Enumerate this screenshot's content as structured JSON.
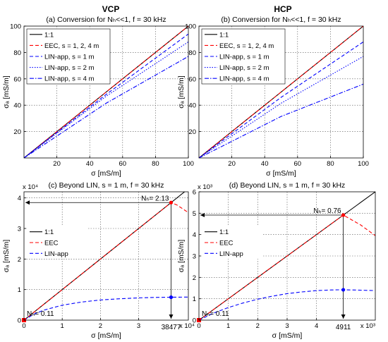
{
  "column_headers": {
    "left": "VCP",
    "right": "HCP"
  },
  "chart_data": [
    {
      "id": "a",
      "type": "line",
      "title": "(a) Conversion for Nₕ<<1, f = 30 kHz",
      "xlabel": "σ [mS/m]",
      "ylabel": "σₐ [mS/m]",
      "xlim": [
        0,
        100
      ],
      "ylim": [
        0,
        100
      ],
      "xticks": [
        20,
        40,
        60,
        80,
        100
      ],
      "yticks": [
        20,
        40,
        60,
        80,
        100
      ],
      "tick_labels_x": [
        "20",
        "40",
        "60",
        "80",
        "100"
      ],
      "tick_labels_y": [
        "20",
        "40",
        "60",
        "80",
        "100"
      ],
      "grid": true,
      "legend_position": "top-left",
      "series": [
        {
          "name": "1:1",
          "color": "#000000",
          "dash": "solid",
          "x": [
            0,
            100
          ],
          "y": [
            0,
            100
          ]
        },
        {
          "name": "EEC, s = 1, 2, 4 m",
          "color": "#ff0000",
          "dash": "dashed",
          "x": [
            0,
            100
          ],
          "y": [
            0,
            100
          ]
        },
        {
          "name": "LIN-app, s = 1 m",
          "color": "#0000ff",
          "dash": "dashed",
          "x": [
            0,
            50,
            100
          ],
          "y": [
            0,
            48.2,
            94
          ]
        },
        {
          "name": "LIN-app, s = 2 m",
          "color": "#0000ff",
          "dash": "dotted",
          "x": [
            0,
            50,
            100
          ],
          "y": [
            0,
            46.8,
            88
          ]
        },
        {
          "name": "LIN-app, s = 4 m",
          "color": "#0000ff",
          "dash": "dashdot",
          "x": [
            0,
            50,
            100
          ],
          "y": [
            0,
            41.5,
            77
          ]
        }
      ]
    },
    {
      "id": "b",
      "type": "line",
      "title": "(b) Conversion for Nₕ<<1, f = 30 kHz",
      "xlabel": "σ [mS/m]",
      "ylabel": "σₐ [mS/m]",
      "xlim": [
        0,
        100
      ],
      "ylim": [
        0,
        100
      ],
      "xticks": [
        20,
        40,
        60,
        80,
        100
      ],
      "yticks": [
        20,
        40,
        60,
        80,
        100
      ],
      "tick_labels_x": [
        "20",
        "40",
        "60",
        "80",
        "100"
      ],
      "tick_labels_y": [
        "20",
        "40",
        "60",
        "80",
        "100"
      ],
      "grid": true,
      "legend_position": "top-left",
      "series": [
        {
          "name": "1:1",
          "color": "#000000",
          "dash": "solid",
          "x": [
            0,
            100
          ],
          "y": [
            0,
            100
          ]
        },
        {
          "name": "EEC, s = 1, 2, 4 m",
          "color": "#ff0000",
          "dash": "dashed",
          "x": [
            0,
            100
          ],
          "y": [
            0,
            100
          ]
        },
        {
          "name": "LIN-app, s = 1 m",
          "color": "#0000ff",
          "dash": "dashed",
          "x": [
            0,
            50,
            100
          ],
          "y": [
            0,
            46,
            88
          ]
        },
        {
          "name": "LIN-app, s = 2 m",
          "color": "#0000ff",
          "dash": "dotted",
          "x": [
            0,
            50,
            100
          ],
          "y": [
            0,
            41.5,
            77
          ]
        },
        {
          "name": "LIN-app, s = 4 m",
          "color": "#0000ff",
          "dash": "dashdot",
          "x": [
            0,
            50,
            100
          ],
          "y": [
            0,
            31.5,
            56
          ]
        }
      ]
    },
    {
      "id": "c",
      "type": "line",
      "title": "(c) Beyond LIN, s = 1 m, f = 30 kHz",
      "xlabel": "σ [mS/m]",
      "ylabel": "σₐ [mS/m]",
      "x_multiplier": "x 10⁴",
      "y_multiplier": "x 10⁴",
      "xlim": [
        0,
        43000
      ],
      "ylim": [
        0,
        42000
      ],
      "xticks": [
        0,
        10000,
        20000,
        30000
      ],
      "yticks": [
        0,
        10000,
        20000,
        30000,
        40000
      ],
      "tick_labels_x": [
        "0",
        "1",
        "2",
        "3"
      ],
      "tick_labels_y": [
        "0",
        "1",
        "2",
        "3",
        "4"
      ],
      "grid": true,
      "legend_position": "middle-left",
      "series": [
        {
          "name": "1:1",
          "color": "#000000",
          "dash": "solid",
          "x": [
            0,
            43000
          ],
          "y": [
            0,
            43000
          ]
        },
        {
          "name": "EEC",
          "color": "#ff0000",
          "dash": "dashed",
          "x": [
            0,
            10000,
            20000,
            30000,
            38477,
            40000,
            43000
          ],
          "y": [
            0,
            10000,
            20000,
            30000,
            38477,
            37700,
            35200
          ]
        },
        {
          "name": "LIN-app",
          "color": "#0000ff",
          "dash": "dashed",
          "x": [
            0,
            2500,
            5000,
            10000,
            15000,
            20000,
            25000,
            30000,
            35000,
            38477,
            43000
          ],
          "y": [
            0,
            1900,
            3200,
            4900,
            5900,
            6600,
            7000,
            7300,
            7450,
            7500,
            7550
          ]
        }
      ],
      "markers": [
        {
          "x": 38477,
          "y": 38477,
          "color": "#ff0000"
        },
        {
          "x": 38477,
          "y": 7500,
          "color": "#0000ff"
        },
        {
          "x": 0,
          "y": 0,
          "color": "#ff0000"
        }
      ],
      "annotations": [
        {
          "text": "Nₕ= 2.13",
          "x": 38477,
          "y": 38477
        },
        {
          "text": "Nₕ= 0.11",
          "x": 0,
          "y": 0
        },
        {
          "text": "38477",
          "x": 38477,
          "y": 0
        }
      ]
    },
    {
      "id": "d",
      "type": "line",
      "title": "(d) Beyond LIN, s = 1 m, f = 30 kHz",
      "xlabel": "σ [mS/m]",
      "ylabel": "σₐ [mS/m]",
      "x_multiplier": "x 10³",
      "y_multiplier": "x 10³",
      "xlim": [
        0,
        6000
      ],
      "ylim": [
        0,
        6000
      ],
      "xticks": [
        0,
        1000,
        2000,
        3000,
        4000
      ],
      "yticks": [
        0,
        1000,
        2000,
        3000,
        4000,
        5000,
        6000
      ],
      "tick_labels_x": [
        "0",
        "1",
        "2",
        "3",
        "4"
      ],
      "tick_labels_y": [
        "0",
        "1",
        "2",
        "3",
        "4",
        "5",
        "6"
      ],
      "grid": true,
      "legend_position": "middle-left",
      "series": [
        {
          "name": "1:1",
          "color": "#000000",
          "dash": "solid",
          "x": [
            0,
            6000
          ],
          "y": [
            0,
            6000
          ]
        },
        {
          "name": "EEC",
          "color": "#ff0000",
          "dash": "dashed",
          "x": [
            0,
            1000,
            2000,
            3000,
            4000,
            4911,
            5500,
            6000
          ],
          "y": [
            0,
            1000,
            2000,
            3000,
            4000,
            4911,
            4450,
            3950
          ]
        },
        {
          "name": "LIN-app",
          "color": "#0000ff",
          "dash": "dashed",
          "x": [
            0,
            500,
            1000,
            1500,
            2000,
            2500,
            3000,
            3500,
            4000,
            4500,
            4911,
            5500,
            6000
          ],
          "y": [
            0,
            330,
            590,
            800,
            980,
            1120,
            1240,
            1320,
            1380,
            1410,
            1420,
            1400,
            1380
          ]
        }
      ],
      "markers": [
        {
          "x": 4911,
          "y": 4911,
          "color": "#ff0000"
        },
        {
          "x": 4911,
          "y": 1420,
          "color": "#0000ff"
        },
        {
          "x": 0,
          "y": 0,
          "color": "#ff0000"
        }
      ],
      "annotations": [
        {
          "text": "Nₕ= 0.76",
          "x": 4911,
          "y": 4911
        },
        {
          "text": "Nₕ= 0.11",
          "x": 0,
          "y": 0
        },
        {
          "text": "4911",
          "x": 4911,
          "y": 0
        }
      ]
    }
  ]
}
